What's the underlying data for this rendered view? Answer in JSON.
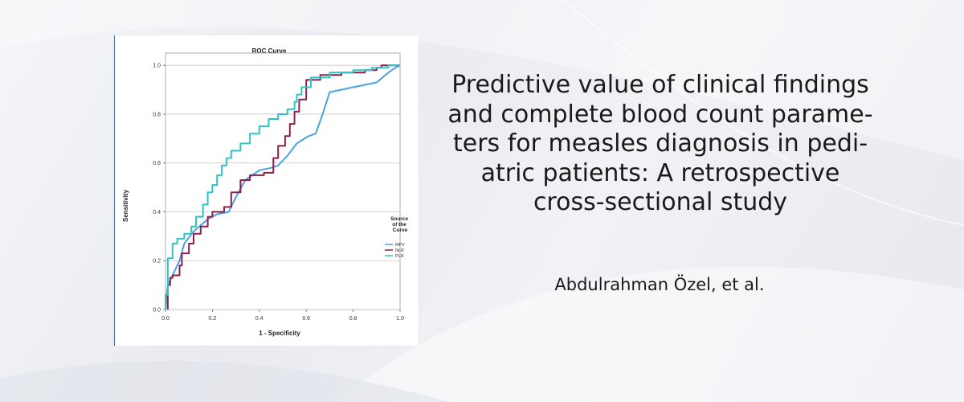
{
  "article": {
    "title_lines": [
      "Predictive value of clinical findings",
      "and complete blood count parame-",
      "ters for measles diagnosis in pedi-",
      "atric patients: A retrospective",
      "cross-sectional study"
    ],
    "authors": "Abdulrahman Özel, et al."
  },
  "chart_data": {
    "type": "line",
    "title": "ROC Curve",
    "xlabel": "1 - Specificity",
    "ylabel": "Sensitivity",
    "xlim": [
      0,
      1
    ],
    "ylim": [
      0,
      1.05
    ],
    "x_ticks": [
      "0.0",
      "0.2",
      "0.4",
      "0.6",
      "0.8",
      "1.0"
    ],
    "y_ticks": [
      "0.0",
      "0.2",
      "0.4",
      "0.6",
      "0.8",
      "1.0"
    ],
    "grid": "horizontal",
    "legend_title": "Source of the Curve",
    "legend_placement": "right",
    "series": [
      {
        "name": "MPV",
        "color": "#4aa3df",
        "step": false,
        "points": [
          [
            0,
            0
          ],
          [
            0.01,
            0.1
          ],
          [
            0.03,
            0.14
          ],
          [
            0.06,
            0.2
          ],
          [
            0.08,
            0.27
          ],
          [
            0.12,
            0.32
          ],
          [
            0.18,
            0.37
          ],
          [
            0.22,
            0.39
          ],
          [
            0.27,
            0.4
          ],
          [
            0.3,
            0.46
          ],
          [
            0.34,
            0.53
          ],
          [
            0.4,
            0.57
          ],
          [
            0.45,
            0.58
          ],
          [
            0.48,
            0.59
          ],
          [
            0.52,
            0.63
          ],
          [
            0.56,
            0.68
          ],
          [
            0.61,
            0.71
          ],
          [
            0.64,
            0.72
          ],
          [
            0.67,
            0.8
          ],
          [
            0.7,
            0.89
          ],
          [
            0.8,
            0.91
          ],
          [
            0.9,
            0.93
          ],
          [
            0.95,
            0.97
          ],
          [
            0.98,
            0.99
          ],
          [
            1.0,
            1.0
          ]
        ]
      },
      {
        "name": "NLR",
        "color": "#8b1f4e",
        "step": true,
        "points": [
          [
            0.01,
            0
          ],
          [
            0.01,
            0.1
          ],
          [
            0.02,
            0.13
          ],
          [
            0.03,
            0.14
          ],
          [
            0.06,
            0.18
          ],
          [
            0.07,
            0.23
          ],
          [
            0.1,
            0.27
          ],
          [
            0.12,
            0.31
          ],
          [
            0.15,
            0.34
          ],
          [
            0.18,
            0.38
          ],
          [
            0.2,
            0.4
          ],
          [
            0.25,
            0.42
          ],
          [
            0.28,
            0.48
          ],
          [
            0.32,
            0.53
          ],
          [
            0.36,
            0.55
          ],
          [
            0.42,
            0.56
          ],
          [
            0.46,
            0.62
          ],
          [
            0.48,
            0.67
          ],
          [
            0.51,
            0.71
          ],
          [
            0.53,
            0.76
          ],
          [
            0.55,
            0.81
          ],
          [
            0.57,
            0.86
          ],
          [
            0.6,
            0.94
          ],
          [
            0.66,
            0.96
          ],
          [
            0.75,
            0.97
          ],
          [
            0.85,
            0.98
          ],
          [
            0.9,
            0.99
          ],
          [
            0.92,
            1.0
          ],
          [
            1.0,
            1.0
          ]
        ]
      },
      {
        "name": "PLR",
        "color": "#2ec4c4",
        "step": true,
        "points": [
          [
            0,
            0
          ],
          [
            0,
            0.06
          ],
          [
            0.01,
            0.21
          ],
          [
            0.03,
            0.27
          ],
          [
            0.05,
            0.29
          ],
          [
            0.08,
            0.31
          ],
          [
            0.11,
            0.34
          ],
          [
            0.13,
            0.38
          ],
          [
            0.16,
            0.43
          ],
          [
            0.18,
            0.48
          ],
          [
            0.2,
            0.51
          ],
          [
            0.22,
            0.55
          ],
          [
            0.24,
            0.59
          ],
          [
            0.26,
            0.62
          ],
          [
            0.28,
            0.65
          ],
          [
            0.32,
            0.68
          ],
          [
            0.36,
            0.72
          ],
          [
            0.4,
            0.75
          ],
          [
            0.44,
            0.78
          ],
          [
            0.48,
            0.8
          ],
          [
            0.52,
            0.82
          ],
          [
            0.55,
            0.85
          ],
          [
            0.56,
            0.88
          ],
          [
            0.58,
            0.91
          ],
          [
            0.62,
            0.95
          ],
          [
            0.7,
            0.97
          ],
          [
            0.8,
            0.98
          ],
          [
            0.88,
            0.99
          ],
          [
            0.95,
            1.0
          ],
          [
            1.0,
            1.0
          ]
        ]
      }
    ]
  }
}
